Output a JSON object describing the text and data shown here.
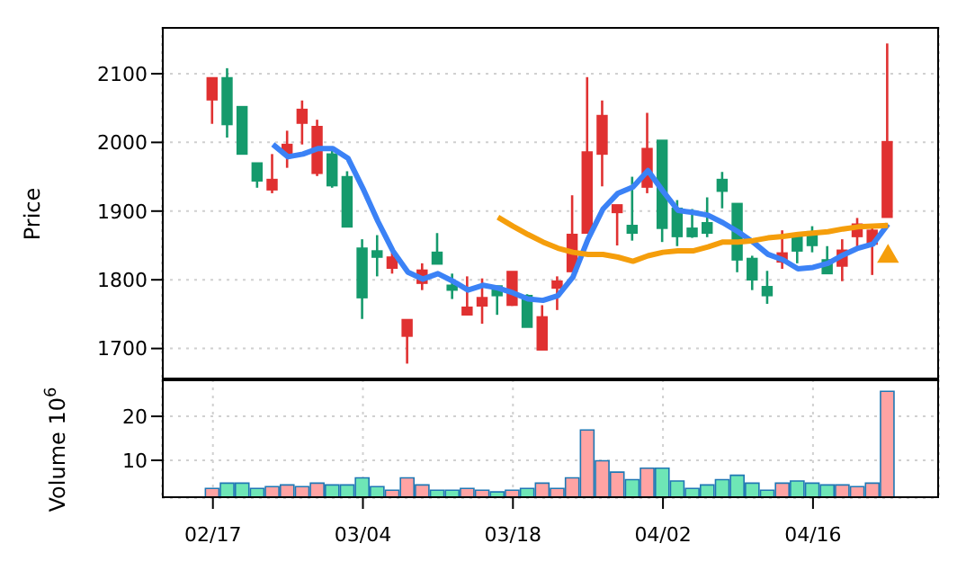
{
  "chart_data": [
    {
      "type": "candlestick",
      "ylabel": "Price",
      "ylim": [
        1655,
        2168
      ],
      "yticks": [
        1700,
        1800,
        1900,
        2000,
        2100
      ],
      "grid": true,
      "tick_labels": "y",
      "categories": [
        null,
        null,
        null,
        null,
        null,
        null,
        null,
        null,
        null,
        null,
        null,
        null,
        null,
        null,
        null,
        null,
        null,
        null,
        null,
        null,
        null,
        null,
        null,
        null,
        null,
        null,
        null,
        null,
        null,
        null,
        null,
        null,
        null,
        null,
        null,
        null,
        null,
        null,
        null,
        null,
        null,
        null,
        null,
        null,
        null,
        null
      ],
      "ohlc": [
        [
          2094,
          2094,
          2027,
          2062
        ],
        [
          2026,
          2108,
          2007,
          2094
        ],
        [
          1983,
          2052,
          1983,
          2052
        ],
        [
          1944,
          1970,
          1934,
          1970
        ],
        [
          1946,
          1983,
          1926,
          1931
        ],
        [
          1997,
          2017,
          1963,
          1983
        ],
        [
          2048,
          2061,
          1997,
          2028
        ],
        [
          2023,
          2033,
          1951,
          1955
        ],
        [
          1937,
          1994,
          1934,
          1983
        ],
        [
          1877,
          1958,
          1877,
          1950
        ],
        [
          1774,
          1859,
          1743,
          1846
        ],
        [
          1833,
          1865,
          1805,
          1842
        ],
        [
          1833,
          1840,
          1809,
          1817
        ],
        [
          1742,
          1742,
          1678,
          1718
        ],
        [
          1814,
          1824,
          1785,
          1795
        ],
        [
          1823,
          1868,
          1823,
          1840
        ],
        [
          1785,
          1809,
          1772,
          1792
        ],
        [
          1760,
          1805,
          1749,
          1749
        ],
        [
          1774,
          1802,
          1736,
          1762
        ],
        [
          1777,
          1791,
          1749,
          1791
        ],
        [
          1812,
          1812,
          1762,
          1763
        ],
        [
          1731,
          1779,
          1731,
          1777
        ],
        [
          1746,
          1763,
          1698,
          1698
        ],
        [
          1798,
          1805,
          1756,
          1788
        ],
        [
          1866,
          1923,
          1812,
          1812
        ],
        [
          1986,
          2095,
          1868,
          1868
        ],
        [
          2039,
          2061,
          1936,
          1983
        ],
        [
          1909,
          1909,
          1850,
          1898
        ],
        [
          1868,
          1950,
          1857,
          1879
        ],
        [
          1991,
          2043,
          1926,
          1935
        ],
        [
          1875,
          2003,
          1855,
          2003
        ],
        [
          1863,
          1916,
          1849,
          1904
        ],
        [
          1863,
          1903,
          1861,
          1875
        ],
        [
          1868,
          1920,
          1862,
          1883
        ],
        [
          1929,
          1957,
          1904,
          1946
        ],
        [
          1829,
          1911,
          1811,
          1911
        ],
        [
          1800,
          1835,
          1785,
          1831
        ],
        [
          1777,
          1813,
          1765,
          1790
        ],
        [
          1839,
          1872,
          1816,
          1826
        ],
        [
          1842,
          1866,
          1824,
          1866
        ],
        [
          1850,
          1878,
          1840,
          1870
        ],
        [
          1809,
          1849,
          1809,
          1829
        ],
        [
          1843,
          1859,
          1798,
          1820
        ],
        [
          1881,
          1890,
          1846,
          1863
        ],
        [
          1872,
          1881,
          1807,
          1852
        ],
        [
          2001,
          2144,
          1891,
          1891
        ]
      ],
      "colors": [
        "#e03131",
        "#159a6c",
        "#159a6c",
        "#159a6c",
        "#e03131",
        "#e03131",
        "#e03131",
        "#e03131",
        "#159a6c",
        "#159a6c",
        "#159a6c",
        "#159a6c",
        "#e03131",
        "#e03131",
        "#e03131",
        "#159a6c",
        "#159a6c",
        "#e03131",
        "#e03131",
        "#159a6c",
        "#e03131",
        "#159a6c",
        "#e03131",
        "#e03131",
        "#e03131",
        "#e03131",
        "#e03131",
        "#e03131",
        "#159a6c",
        "#e03131",
        "#159a6c",
        "#159a6c",
        "#159a6c",
        "#159a6c",
        "#159a6c",
        "#159a6c",
        "#159a6c",
        "#159a6c",
        "#e03131",
        "#159a6c",
        "#159a6c",
        "#159a6c",
        "#e03131",
        "#e03131",
        "#e03131",
        "#e03131"
      ],
      "series": [
        {
          "type": "line",
          "color": "#3b82f6",
          "values": [
            null,
            null,
            null,
            null,
            1997,
            1979,
            1983,
            1991,
            1991,
            1977,
            1933,
            1885,
            1842,
            1811,
            1801,
            1809,
            1798,
            1785,
            1792,
            1788,
            1781,
            1772,
            1770,
            1777,
            1804,
            1859,
            1903,
            1926,
            1935,
            1959,
            1929,
            1901,
            1898,
            1894,
            1883,
            1870,
            1855,
            1837,
            1829,
            1816,
            1818,
            1824,
            1836,
            1846,
            1852,
            1881
          ]
        },
        {
          "type": "line",
          "color": "#f59e0b",
          "values": [
            null,
            null,
            null,
            null,
            null,
            null,
            null,
            null,
            null,
            null,
            null,
            null,
            null,
            null,
            null,
            null,
            null,
            null,
            null,
            1891,
            1878,
            1866,
            1855,
            1846,
            1840,
            1837,
            1837,
            1833,
            1827,
            1835,
            1840,
            1842,
            1842,
            1848,
            1855,
            1855,
            1857,
            1861,
            1863,
            1866,
            1868,
            1870,
            1874,
            1877,
            1878,
            1879
          ]
        },
        {
          "type": "scatter",
          "marker": "triangle",
          "color": "#f59e0b",
          "values": [
            null,
            null,
            null,
            null,
            null,
            null,
            null,
            null,
            null,
            null,
            null,
            null,
            null,
            null,
            null,
            null,
            null,
            null,
            null,
            null,
            null,
            null,
            null,
            null,
            null,
            null,
            null,
            null,
            null,
            null,
            null,
            null,
            null,
            null,
            null,
            null,
            null,
            null,
            null,
            null,
            null,
            null,
            null,
            null,
            null,
            1834
          ]
        }
      ]
    },
    {
      "type": "bar",
      "ylabel": "Volume  10$^{6}$",
      "ylim": [
        1.4,
        28.4
      ],
      "yticks": [
        10,
        20
      ],
      "grid": true,
      "categories": [
        "02/17",
        null,
        null,
        null,
        null,
        null,
        null,
        null,
        null,
        null,
        "03/04",
        null,
        null,
        null,
        null,
        null,
        null,
        null,
        null,
        null,
        "03/18",
        null,
        null,
        null,
        null,
        null,
        null,
        null,
        null,
        null,
        "04/02",
        null,
        null,
        null,
        null,
        null,
        null,
        null,
        null,
        null,
        "04/16",
        null,
        null,
        null,
        null,
        null
      ],
      "values": [
        3.6,
        4.8,
        4.8,
        3.6,
        4.0,
        4.4,
        4.0,
        4.8,
        4.4,
        4.4,
        6.0,
        4.0,
        3.2,
        6.0,
        4.4,
        3.2,
        3.2,
        3.6,
        3.2,
        2.8,
        3.2,
        3.6,
        4.8,
        3.6,
        6.0,
        16.9,
        9.9,
        7.3,
        5.6,
        8.2,
        8.2,
        5.3,
        3.6,
        4.4,
        5.6,
        6.6,
        4.8,
        3.2,
        4.8,
        5.3,
        4.8,
        4.4,
        4.4,
        4.0,
        4.8,
        25.7
      ],
      "colors": [
        "#ffa3a3",
        "#6ee6b6",
        "#6ee6b6",
        "#6ee6b6",
        "#ffa3a3",
        "#ffa3a3",
        "#ffa3a3",
        "#ffa3a3",
        "#6ee6b6",
        "#6ee6b6",
        "#6ee6b6",
        "#6ee6b6",
        "#ffa3a3",
        "#ffa3a3",
        "#ffa3a3",
        "#6ee6b6",
        "#6ee6b6",
        "#ffa3a3",
        "#ffa3a3",
        "#6ee6b6",
        "#ffa3a3",
        "#6ee6b6",
        "#ffa3a3",
        "#ffa3a3",
        "#ffa3a3",
        "#ffa3a3",
        "#ffa3a3",
        "#ffa3a3",
        "#6ee6b6",
        "#ffa3a3",
        "#6ee6b6",
        "#6ee6b6",
        "#6ee6b6",
        "#6ee6b6",
        "#6ee6b6",
        "#6ee6b6",
        "#6ee6b6",
        "#6ee6b6",
        "#ffa3a3",
        "#6ee6b6",
        "#6ee6b6",
        "#6ee6b6",
        "#ffa3a3",
        "#ffa3a3",
        "#ffa3a3",
        "#ffa3a3"
      ]
    }
  ]
}
